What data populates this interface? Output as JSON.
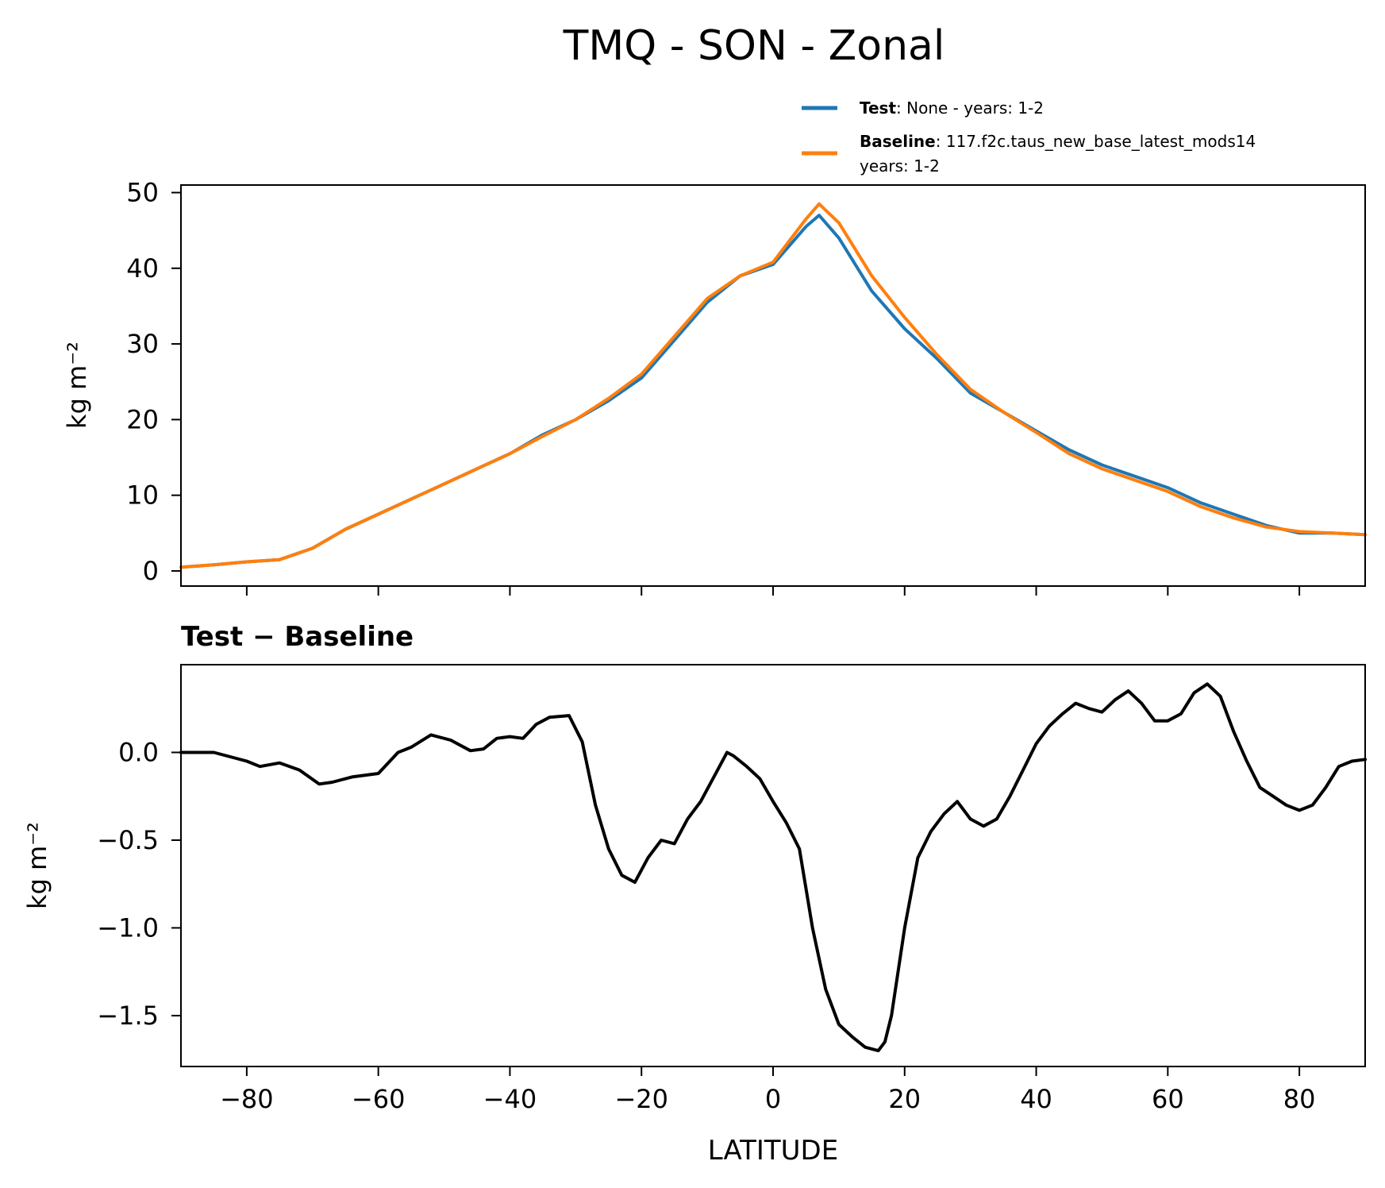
{
  "figure": {
    "title": "TMQ - SON - Zonal"
  },
  "legend": {
    "entries": [
      {
        "bold": "Test",
        "sep": ": ",
        "text": "None - years: 1-2",
        "color": "#1f77b4"
      },
      {
        "bold": "Baseline",
        "sep": ": ",
        "text": "117.f2c.taus_new_base_latest_mods14",
        "text2": "years: 1-2",
        "color": "#ff7f0e"
      }
    ]
  },
  "chart_data": [
    {
      "type": "line",
      "title": "",
      "xlabel": "",
      "ylabel": "kg m⁻²",
      "xlim": [
        -90,
        90
      ],
      "ylim": [
        -2,
        51
      ],
      "yticks": [
        0,
        10,
        20,
        30,
        40,
        50
      ],
      "ytick_labels": [
        "0",
        "10",
        "20",
        "30",
        "40",
        "50"
      ],
      "xticks": [
        -80,
        -60,
        -40,
        -20,
        0,
        20,
        40,
        60,
        80
      ],
      "show_xtick_labels": false,
      "x": [
        -90,
        -85,
        -80,
        -75,
        -70,
        -65,
        -60,
        -55,
        -50,
        -45,
        -40,
        -35,
        -30,
        -25,
        -20,
        -15,
        -10,
        -5,
        0,
        5,
        7,
        10,
        15,
        20,
        25,
        30,
        35,
        40,
        45,
        50,
        55,
        60,
        65,
        70,
        75,
        80,
        85,
        90
      ],
      "series": [
        {
          "name": "Test",
          "color": "#1f77b4",
          "values": [
            0.5,
            0.8,
            1.2,
            1.5,
            3.0,
            5.5,
            7.5,
            9.5,
            11.5,
            13.5,
            15.5,
            18.0,
            20.0,
            22.5,
            25.5,
            30.5,
            35.5,
            39.0,
            40.5,
            45.5,
            47.0,
            44.0,
            37.0,
            32.0,
            28.0,
            23.5,
            21.0,
            18.5,
            16.0,
            14.0,
            12.5,
            11.0,
            9.0,
            7.5,
            6.0,
            5.0,
            5.0,
            4.8
          ]
        },
        {
          "name": "Baseline",
          "color": "#ff7f0e",
          "values": [
            0.5,
            0.8,
            1.2,
            1.5,
            3.0,
            5.5,
            7.5,
            9.5,
            11.5,
            13.5,
            15.5,
            17.8,
            20.0,
            22.8,
            26.0,
            31.0,
            36.0,
            39.0,
            40.8,
            46.5,
            48.5,
            46.0,
            39.0,
            33.5,
            28.5,
            24.0,
            21.0,
            18.3,
            15.5,
            13.5,
            12.0,
            10.5,
            8.5,
            7.0,
            5.8,
            5.2,
            5.0,
            4.8
          ]
        }
      ]
    },
    {
      "type": "line",
      "title": "Test − Baseline",
      "xlabel": "LATITUDE",
      "ylabel": "kg m⁻²",
      "xlim": [
        -90,
        90
      ],
      "ylim": [
        -1.79,
        0.5
      ],
      "yticks": [
        -1.5,
        -1.0,
        -0.5,
        0.0
      ],
      "ytick_labels": [
        "−1.5",
        "−1.0",
        "−0.5",
        "0.0"
      ],
      "xticks": [
        -80,
        -60,
        -40,
        -20,
        0,
        20,
        40,
        60,
        80
      ],
      "xtick_labels": [
        "−80",
        "−60",
        "−40",
        "−20",
        "0",
        "20",
        "40",
        "60",
        "80"
      ],
      "x": [
        -90,
        -85,
        -80,
        -78,
        -75,
        -72,
        -69,
        -67,
        -64,
        -60,
        -57,
        -55,
        -52,
        -49,
        -46,
        -44,
        -42,
        -40,
        -38,
        -36,
        -34,
        -31,
        -29,
        -27,
        -25,
        -23,
        -21,
        -19,
        -17,
        -15,
        -13,
        -11,
        -9,
        -7,
        -6,
        -4,
        -2,
        0,
        2,
        4,
        6,
        8,
        10,
        12,
        14,
        16,
        17,
        18,
        20,
        22,
        24,
        26,
        28,
        30,
        32,
        34,
        36,
        38,
        40,
        42,
        44,
        46,
        48,
        50,
        52,
        54,
        56,
        58,
        60,
        62,
        64,
        66,
        68,
        70,
        72,
        74,
        76,
        78,
        80,
        82,
        84,
        86,
        88,
        90
      ],
      "series": [
        {
          "name": "Test − Baseline",
          "color": "#000000",
          "values": [
            0.0,
            0.0,
            -0.05,
            -0.08,
            -0.06,
            -0.1,
            -0.18,
            -0.17,
            -0.14,
            -0.12,
            0.0,
            0.03,
            0.1,
            0.07,
            0.01,
            0.02,
            0.08,
            0.09,
            0.08,
            0.16,
            0.2,
            0.21,
            0.06,
            -0.3,
            -0.55,
            -0.7,
            -0.74,
            -0.6,
            -0.5,
            -0.52,
            -0.38,
            -0.28,
            -0.14,
            0.0,
            -0.02,
            -0.08,
            -0.15,
            -0.28,
            -0.4,
            -0.55,
            -1.0,
            -1.35,
            -1.55,
            -1.62,
            -1.68,
            -1.7,
            -1.65,
            -1.5,
            -1.0,
            -0.6,
            -0.45,
            -0.35,
            -0.28,
            -0.38,
            -0.42,
            -0.38,
            -0.25,
            -0.1,
            0.05,
            0.15,
            0.22,
            0.28,
            0.25,
            0.23,
            0.3,
            0.35,
            0.28,
            0.18,
            0.18,
            0.22,
            0.34,
            0.39,
            0.32,
            0.12,
            -0.05,
            -0.2,
            -0.25,
            -0.3,
            -0.33,
            -0.3,
            -0.2,
            -0.08,
            -0.05,
            -0.04
          ]
        }
      ]
    }
  ]
}
